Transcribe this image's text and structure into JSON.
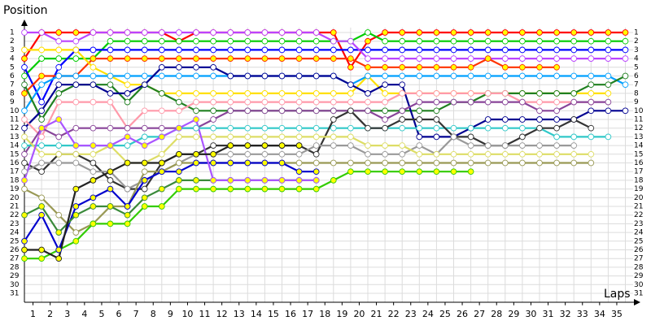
{
  "chart_data": {
    "type": "line",
    "title": "Position",
    "x_label": "Laps",
    "x": [
      0,
      1,
      2,
      3,
      4,
      5,
      6,
      7,
      8,
      9,
      10,
      11,
      12,
      13,
      14,
      15,
      16,
      17,
      18,
      19,
      20,
      21,
      22,
      23,
      24,
      25,
      26,
      27,
      28,
      29,
      30,
      31,
      32,
      33,
      34,
      35
    ],
    "xlim": [
      0,
      35
    ],
    "xticks": [
      {
        "value": 0.5,
        "label": "1"
      },
      {
        "value": 1.5,
        "label": "2"
      },
      {
        "value": 2.5,
        "label": "3"
      },
      {
        "value": 3.5,
        "label": "4"
      },
      {
        "value": 4.5,
        "label": "5"
      },
      {
        "value": 5.5,
        "label": "6"
      },
      {
        "value": 6.5,
        "label": "7"
      },
      {
        "value": 7.5,
        "label": "8"
      },
      {
        "value": 8.5,
        "label": "9"
      },
      {
        "value": 9.5,
        "label": "10"
      },
      {
        "value": 10.5,
        "label": "11"
      },
      {
        "value": 11.5,
        "label": "12"
      },
      {
        "value": 12.5,
        "label": "13"
      },
      {
        "value": 13.5,
        "label": "14"
      },
      {
        "value": 14.5,
        "label": "15"
      },
      {
        "value": 15.5,
        "label": "16"
      },
      {
        "value": 16.5,
        "label": "17"
      },
      {
        "value": 17.5,
        "label": "18"
      },
      {
        "value": 18.5,
        "label": "19"
      },
      {
        "value": 19.5,
        "label": "20"
      },
      {
        "value": 20.5,
        "label": "21"
      },
      {
        "value": 21.5,
        "label": "22"
      },
      {
        "value": 22.5,
        "label": "23"
      },
      {
        "value": 23.5,
        "label": "24"
      },
      {
        "value": 24.5,
        "label": "25"
      },
      {
        "value": 25.5,
        "label": "26"
      },
      {
        "value": 26.5,
        "label": "27"
      },
      {
        "value": 27.5,
        "label": "28"
      },
      {
        "value": 28.5,
        "label": "29"
      },
      {
        "value": 29.5,
        "label": "30"
      },
      {
        "value": 30.5,
        "label": "31"
      },
      {
        "value": 31.5,
        "label": "32"
      },
      {
        "value": 32.5,
        "label": "33"
      },
      {
        "value": 33.5,
        "label": "34"
      },
      {
        "value": 34.5,
        "label": "35"
      }
    ],
    "ylim": [
      32,
      0
    ],
    "yticks": [
      1,
      2,
      3,
      4,
      5,
      6,
      7,
      8,
      9,
      10,
      11,
      12,
      13,
      14,
      15,
      16,
      17,
      18,
      19,
      20,
      21,
      22,
      23,
      24,
      25,
      26,
      27,
      28,
      29,
      30,
      31
    ],
    "grid": true,
    "series": [
      {
        "color": "#ff0000",
        "marker_color": "#ffff00",
        "values": [
          4,
          1,
          1,
          1,
          1,
          1,
          1,
          1,
          1,
          2,
          1,
          1,
          1,
          1,
          1,
          1,
          1,
          1,
          1,
          5,
          2,
          1,
          1,
          1,
          1,
          1,
          1,
          1,
          1,
          1,
          1,
          1,
          1,
          1,
          1,
          1
        ]
      },
      {
        "color": "#00cc00",
        "marker_color": "#ffffff",
        "values": [
          6,
          4,
          4,
          4,
          4,
          2,
          2,
          2,
          2,
          2,
          2,
          2,
          2,
          2,
          2,
          2,
          2,
          2,
          2,
          2,
          1,
          2,
          2,
          2,
          2,
          2,
          2,
          2,
          2,
          2,
          2,
          2,
          2,
          2,
          2,
          2
        ]
      },
      {
        "color": "#0000ff",
        "marker_color": "#ffffff",
        "values": [
          5,
          9,
          5,
          3,
          3,
          3,
          3,
          3,
          3,
          3,
          3,
          3,
          3,
          3,
          3,
          3,
          3,
          3,
          3,
          3,
          3,
          3,
          3,
          3,
          3,
          3,
          3,
          3,
          3,
          3,
          3,
          3,
          3,
          3,
          3,
          3
        ]
      },
      {
        "color": "#bb44ff",
        "marker_color": "#ffffff",
        "values": [
          1,
          1,
          2,
          2,
          1,
          1,
          1,
          1,
          1,
          1,
          1,
          1,
          1,
          1,
          1,
          1,
          1,
          1,
          2,
          2,
          4,
          4,
          4,
          4,
          4,
          4,
          4,
          4,
          4,
          4,
          4,
          4,
          4,
          4,
          4,
          4
        ]
      },
      {
        "color": "#ff3300",
        "marker_color": "#ffff00",
        "values": [
          8,
          6,
          6,
          6,
          4,
          4,
          4,
          4,
          4,
          4,
          4,
          4,
          4,
          4,
          4,
          4,
          4,
          4,
          4,
          4,
          5,
          5,
          5,
          5,
          5,
          5,
          5,
          4,
          5,
          5,
          5,
          5,
          null,
          null,
          null,
          null
        ]
      },
      {
        "color": "#ffe000",
        "marker_color": "#ffffff",
        "values": [
          3,
          3,
          3,
          3,
          5,
          6,
          7,
          7,
          8,
          8,
          8,
          8,
          8,
          8,
          8,
          8,
          8,
          8,
          8,
          8,
          6,
          8,
          8,
          8,
          8,
          8,
          8,
          8,
          8,
          8,
          8,
          8,
          8,
          8,
          8,
          null
        ]
      },
      {
        "color": "#00a0ff",
        "marker_color": "#ffffff",
        "values": [
          10,
          7,
          6,
          6,
          6,
          6,
          6,
          6,
          6,
          6,
          6,
          6,
          6,
          6,
          6,
          6,
          6,
          6,
          6,
          7,
          6,
          6,
          6,
          6,
          6,
          6,
          6,
          6,
          6,
          6,
          6,
          6,
          6,
          6,
          6,
          7
        ]
      },
      {
        "color": "#208020",
        "marker_color": "#ffffff",
        "values": [
          7,
          11,
          8,
          7,
          7,
          7,
          9,
          7,
          8,
          9,
          10,
          10,
          10,
          10,
          10,
          10,
          10,
          10,
          10,
          10,
          10,
          10,
          10,
          10,
          10,
          9,
          9,
          8,
          8,
          8,
          8,
          8,
          8,
          7,
          7,
          6
        ]
      },
      {
        "color": "#000090",
        "marker_color": "#ffffff",
        "values": [
          12,
          10,
          7,
          7,
          7,
          8,
          8,
          7,
          5,
          5,
          5,
          5,
          6,
          6,
          6,
          6,
          6,
          6,
          6,
          7,
          8,
          7,
          7,
          13,
          13,
          13,
          12,
          11,
          11,
          11,
          11,
          11,
          11,
          10,
          10,
          10
        ]
      },
      {
        "color": "#ff9aaa",
        "marker_color": "#ffffff",
        "values": [
          11,
          13,
          9,
          9,
          9,
          9,
          12,
          10,
          10,
          10,
          9,
          9,
          9,
          9,
          9,
          9,
          9,
          9,
          9,
          9,
          9,
          9,
          8,
          8,
          8,
          8,
          8,
          8,
          8,
          9,
          9,
          9,
          9,
          9,
          null,
          null
        ]
      },
      {
        "color": "#884499",
        "marker_color": "#ffffff",
        "values": [
          15,
          12,
          13,
          12,
          12,
          12,
          12,
          12,
          12,
          12,
          12,
          11,
          10,
          10,
          10,
          10,
          10,
          10,
          10,
          10,
          10,
          11,
          10,
          9,
          9,
          9,
          9,
          9,
          9,
          9,
          10,
          10,
          9,
          9,
          9,
          null
        ]
      },
      {
        "color": "#30c8c8",
        "marker_color": "#ffffff",
        "values": [
          14,
          14,
          14,
          14,
          14,
          14,
          14,
          13,
          13,
          12,
          12,
          12,
          12,
          12,
          12,
          12,
          12,
          12,
          12,
          12,
          12,
          12,
          12,
          12,
          12,
          12,
          12,
          12,
          12,
          12,
          12,
          13,
          13,
          13,
          13,
          null
        ]
      },
      {
        "color": "#333333",
        "marker_color": "#ffffff",
        "values": [
          16,
          17,
          15,
          15,
          16,
          18,
          19,
          19,
          16,
          15,
          15,
          14,
          14,
          14,
          14,
          14,
          14,
          15,
          11,
          10,
          12,
          12,
          11,
          11,
          11,
          13,
          13,
          14,
          14,
          13,
          12,
          12,
          11,
          12,
          null,
          null
        ]
      },
      {
        "color": "#999999",
        "marker_color": "#ffffff",
        "values": [
          17,
          16,
          16,
          16,
          17,
          17,
          19,
          18,
          17,
          16,
          15,
          15,
          15,
          15,
          15,
          15,
          15,
          14,
          14,
          14,
          15,
          15,
          15,
          14,
          15,
          13,
          14,
          14,
          14,
          14,
          14,
          14,
          14,
          null,
          null,
          null
        ]
      },
      {
        "color": "#dddd66",
        "marker_color": "#ffffff",
        "values": [
          13,
          15,
          15,
          15,
          15,
          14,
          16,
          16,
          15,
          13,
          13,
          13,
          13,
          13,
          13,
          13,
          13,
          13,
          13,
          13,
          14,
          14,
          14,
          15,
          15,
          15,
          15,
          15,
          15,
          15,
          15,
          15,
          15,
          15,
          null,
          null
        ]
      },
      {
        "color": "#999955",
        "marker_color": "#ffffff",
        "values": [
          19,
          20,
          22,
          24,
          23,
          21,
          21,
          17,
          17,
          16,
          16,
          16,
          16,
          16,
          16,
          16,
          16,
          16,
          16,
          16,
          16,
          16,
          16,
          16,
          16,
          16,
          16,
          16,
          16,
          16,
          16,
          16,
          16,
          16,
          null,
          null
        ]
      },
      {
        "color": "#33cc00",
        "marker_color": "#ffff00",
        "values": [
          27,
          27,
          26,
          25,
          23,
          23,
          23,
          21,
          21,
          19,
          19,
          19,
          19,
          19,
          19,
          19,
          19,
          19,
          18,
          17,
          17,
          17,
          17,
          17,
          17,
          17,
          17,
          null,
          null,
          null,
          null,
          null,
          null,
          null,
          null,
          null
        ]
      },
      {
        "color": "#0000cc",
        "marker_color": "#ffff00",
        "values": [
          25,
          22,
          26,
          21,
          20,
          19,
          21,
          18,
          17,
          17,
          16,
          16,
          16,
          16,
          16,
          16,
          17,
          17,
          null,
          null,
          null,
          null,
          null,
          null,
          null,
          null,
          null,
          null,
          null,
          null,
          null,
          null,
          null,
          null,
          null,
          null
        ]
      },
      {
        "color": "#3a8a3a",
        "marker_color": "#ffff00",
        "values": [
          22,
          21,
          24,
          22,
          21,
          21,
          22,
          20,
          19,
          18,
          18,
          18,
          18,
          18,
          18,
          18,
          18,
          18,
          null,
          null,
          null,
          null,
          null,
          null,
          null,
          null,
          null,
          null,
          null,
          null,
          null,
          null,
          null,
          null,
          null,
          null
        ]
      },
      {
        "color": "#aa55ff",
        "marker_color": "#ffff00",
        "values": [
          18,
          12,
          11,
          14,
          14,
          14,
          13,
          14,
          13,
          12,
          11,
          18,
          18,
          18,
          18,
          18,
          18,
          18,
          null,
          null,
          null,
          null,
          null,
          null,
          null,
          null,
          null,
          null,
          null,
          null,
          null,
          null,
          null,
          null,
          null,
          null
        ]
      },
      {
        "color": "#222222",
        "marker_color": "#ffff00",
        "values": [
          26,
          26,
          27,
          19,
          18,
          17,
          16,
          16,
          16,
          15,
          15,
          15,
          14,
          14,
          14,
          14,
          14,
          null,
          null,
          null,
          null,
          null,
          null,
          null,
          null,
          null,
          null,
          null,
          null,
          null,
          null,
          null,
          null,
          null,
          null,
          null
        ]
      }
    ]
  }
}
